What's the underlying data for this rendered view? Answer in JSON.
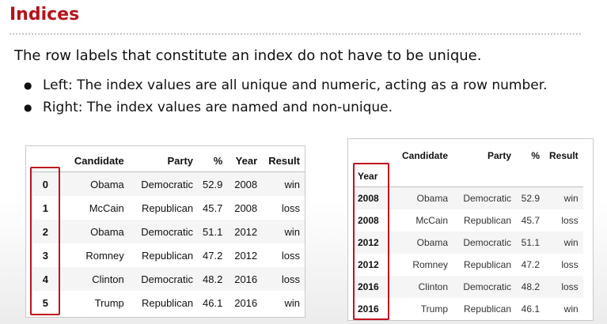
{
  "slide": {
    "title": "Indices",
    "intro": "The row labels that constitute an index do not have to be unique.",
    "bullets": [
      "Left: The index values are all unique and numeric, acting as a row number.",
      "Right: The index values are named and non-unique."
    ]
  },
  "highlight_color": "#c0131f",
  "left_table": {
    "columns": [
      "Candidate",
      "Party",
      "%",
      "Year",
      "Result"
    ],
    "rows": [
      {
        "index": "0",
        "cells": [
          "Obama",
          "Democratic",
          "52.9",
          "2008",
          "win"
        ]
      },
      {
        "index": "1",
        "cells": [
          "McCain",
          "Republican",
          "45.7",
          "2008",
          "loss"
        ]
      },
      {
        "index": "2",
        "cells": [
          "Obama",
          "Democratic",
          "51.1",
          "2012",
          "win"
        ]
      },
      {
        "index": "3",
        "cells": [
          "Romney",
          "Republican",
          "47.2",
          "2012",
          "loss"
        ]
      },
      {
        "index": "4",
        "cells": [
          "Clinton",
          "Democratic",
          "48.2",
          "2016",
          "loss"
        ]
      },
      {
        "index": "5",
        "cells": [
          "Trump",
          "Republican",
          "46.1",
          "2016",
          "win"
        ]
      }
    ]
  },
  "right_table": {
    "columns": [
      "Candidate",
      "Party",
      "%",
      "Result"
    ],
    "index_name": "Year",
    "rows": [
      {
        "index": "2008",
        "cells": [
          "Obama",
          "Democratic",
          "52.9",
          "win"
        ]
      },
      {
        "index": "2008",
        "cells": [
          "McCain",
          "Republican",
          "45.7",
          "loss"
        ]
      },
      {
        "index": "2012",
        "cells": [
          "Obama",
          "Democratic",
          "51.1",
          "win"
        ]
      },
      {
        "index": "2012",
        "cells": [
          "Romney",
          "Republican",
          "47.2",
          "loss"
        ]
      },
      {
        "index": "2016",
        "cells": [
          "Clinton",
          "Democratic",
          "48.2",
          "loss"
        ]
      },
      {
        "index": "2016",
        "cells": [
          "Trump",
          "Republican",
          "46.1",
          "win"
        ]
      }
    ]
  }
}
